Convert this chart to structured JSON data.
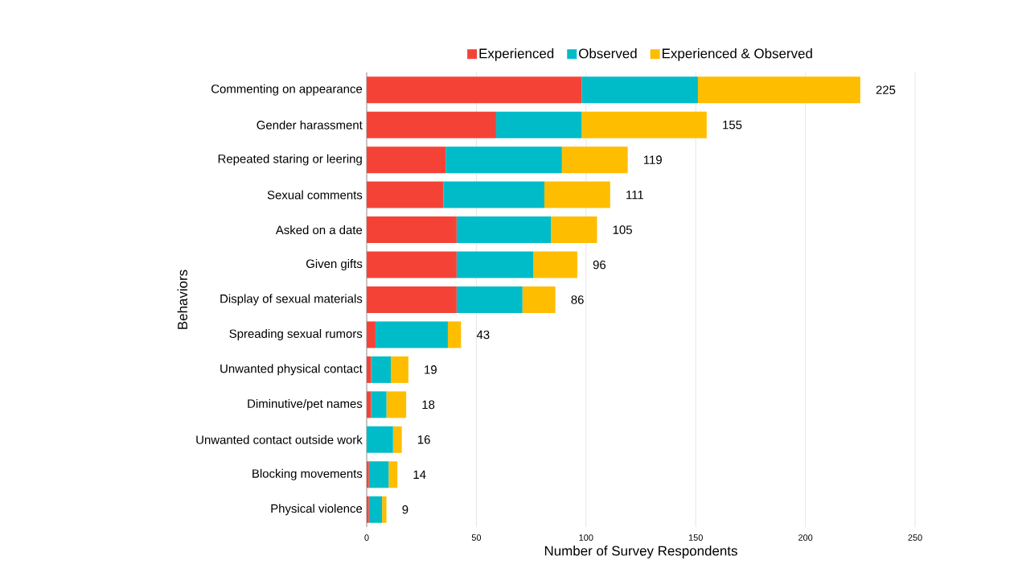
{
  "chart_data": {
    "type": "bar",
    "orientation": "horizontal",
    "stacked": true,
    "categories": [
      "Commenting on appearance",
      "Gender harassment",
      "Repeated staring or leering",
      "Sexual comments",
      "Asked on a date",
      "Given gifts",
      "Display of sexual materials",
      "Spreading sexual rumors",
      "Unwanted physical contact",
      "Diminutive/pet names",
      "Unwanted contact outside work",
      "Blocking movements",
      "Physical violence"
    ],
    "series": [
      {
        "name": "Experienced",
        "color": "#f44336",
        "values": [
          98,
          59,
          36,
          35,
          41,
          41,
          41,
          4,
          2,
          2,
          0,
          1,
          1
        ]
      },
      {
        "name": "Observed",
        "color": "#00bcc8",
        "values": [
          53,
          39,
          53,
          46,
          43,
          35,
          30,
          33,
          9,
          7,
          12,
          9,
          6
        ]
      },
      {
        "name": "Experienced & Observed",
        "color": "#ffbd00",
        "values": [
          74,
          57,
          30,
          30,
          21,
          20,
          15,
          6,
          8,
          9,
          4,
          4,
          2
        ]
      }
    ],
    "totals": [
      "225",
      "155",
      "119",
      "111",
      "105",
      "96",
      "86",
      "43",
      "19",
      "18",
      "16",
      "14",
      "9"
    ],
    "xlabel": "Number of Survey Respondents",
    "ylabel": "Behaviors",
    "xlim": [
      0,
      250
    ],
    "xticks": [
      0,
      50,
      100,
      150,
      200,
      250
    ],
    "grid": "x",
    "legend": "top"
  }
}
